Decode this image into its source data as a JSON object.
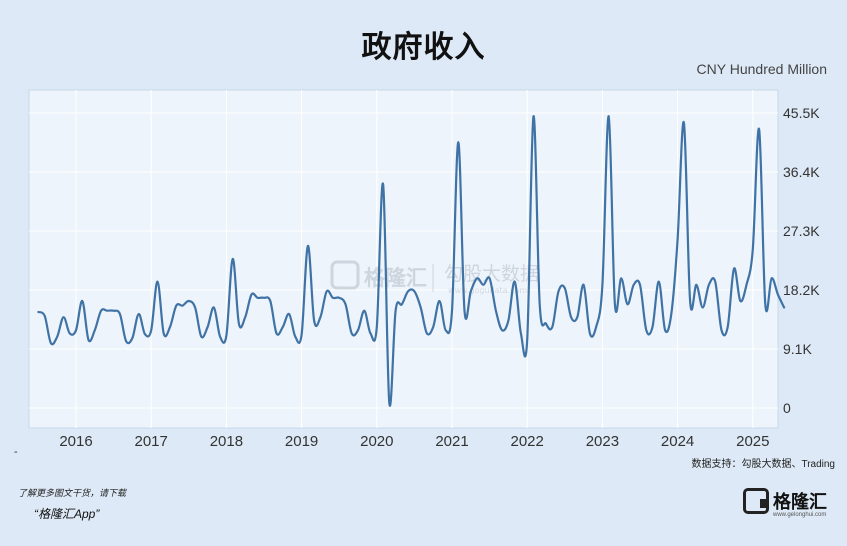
{
  "title": "政府收入",
  "unit": "CNY Hundred Million",
  "watermark": {
    "brand": "格隆汇",
    "database": "勾股大数据",
    "url": "www.gogudata.com"
  },
  "source": "数据支持：勾股大数据、Trading",
  "dash": "-",
  "footer": {
    "line1": "了解更多图文干货，请下载",
    "line2": "“格隆汇App”"
  },
  "brand": {
    "name": "格隆汇",
    "url": "www.gelonghui.com"
  },
  "colors": {
    "background": "#dde9f6",
    "plot_background": "#eef4fb",
    "line": "#3f73a5",
    "grid": "#ffffff"
  },
  "chart_data": {
    "type": "line",
    "title": "政府收入",
    "unit": "CNY Hundred Million",
    "grid": true,
    "y_axis_side": "right",
    "ylim": [
      0,
      48000
    ],
    "y_ticks": [
      0,
      9100,
      18200,
      27300,
      36400,
      45500
    ],
    "y_tick_labels": [
      "0",
      "9.1K",
      "18.2K",
      "27.3K",
      "36.4K",
      "45.5K"
    ],
    "x_tick_labels": [
      "2016",
      "2017",
      "2018",
      "2019",
      "2020",
      "2021",
      "2022",
      "2023",
      "2024",
      "2025"
    ],
    "x": [
      "2015-07",
      "2015-08",
      "2015-09",
      "2015-10",
      "2015-11",
      "2015-12",
      "2016-01",
      "2016-02",
      "2016-03",
      "2016-04",
      "2016-05",
      "2016-06",
      "2016-07",
      "2016-08",
      "2016-09",
      "2016-10",
      "2016-11",
      "2016-12",
      "2017-01",
      "2017-02",
      "2017-03",
      "2017-04",
      "2017-05",
      "2017-06",
      "2017-07",
      "2017-08",
      "2017-09",
      "2017-10",
      "2017-11",
      "2017-12",
      "2018-01",
      "2018-02",
      "2018-03",
      "2018-04",
      "2018-05",
      "2018-06",
      "2018-07",
      "2018-08",
      "2018-09",
      "2018-10",
      "2018-11",
      "2018-12",
      "2019-01",
      "2019-02",
      "2019-03",
      "2019-04",
      "2019-05",
      "2019-06",
      "2019-07",
      "2019-08",
      "2019-09",
      "2019-10",
      "2019-11",
      "2019-12",
      "2020-01",
      "2020-02",
      "2020-03",
      "2020-04",
      "2020-05",
      "2020-06",
      "2020-07",
      "2020-08",
      "2020-09",
      "2020-10",
      "2020-11",
      "2020-12",
      "2021-01",
      "2021-02",
      "2021-03",
      "2021-04",
      "2021-05",
      "2021-06",
      "2021-07",
      "2021-08",
      "2021-09",
      "2021-10",
      "2021-11",
      "2021-12",
      "2022-01",
      "2022-02",
      "2022-03",
      "2022-04",
      "2022-05",
      "2022-06",
      "2022-07",
      "2022-08",
      "2022-09",
      "2022-10",
      "2022-11",
      "2022-12",
      "2023-01",
      "2023-02",
      "2023-03",
      "2023-04",
      "2023-05",
      "2023-06",
      "2023-07",
      "2023-08",
      "2023-09",
      "2023-10",
      "2023-11",
      "2023-12",
      "2024-01",
      "2024-02",
      "2024-03",
      "2024-04",
      "2024-05",
      "2024-06",
      "2024-07",
      "2024-08",
      "2024-09",
      "2024-10",
      "2024-11",
      "2024-12",
      "2025-01",
      "2025-02",
      "2025-03",
      "2025-04",
      "2025-05",
      "2025-06"
    ],
    "series": [
      {
        "values": [
          14800,
          14200,
          10000,
          11000,
          14000,
          11500,
          12000,
          16500,
          10500,
          12000,
          15000,
          15000,
          15000,
          14500,
          10300,
          10800,
          14500,
          11400,
          12000,
          19500,
          11500,
          12500,
          15800,
          15800,
          16500,
          15500,
          11000,
          12500,
          15500,
          11000,
          11200,
          23000,
          13000,
          14000,
          17500,
          17000,
          17000,
          16500,
          11500,
          12500,
          14500,
          11000,
          11300,
          25000,
          13500,
          14000,
          18000,
          17000,
          17000,
          16000,
          11500,
          12000,
          15000,
          11500,
          12500,
          34500,
          800,
          15000,
          16000,
          18000,
          18000,
          15500,
          11500,
          12500,
          16500,
          12000,
          15000,
          41000,
          15000,
          18000,
          20000,
          19000,
          20000,
          15000,
          12000,
          13500,
          19500,
          11500,
          10500,
          45000,
          16000,
          13000,
          12500,
          18000,
          18500,
          14000,
          14000,
          19000,
          11500,
          12500,
          19000,
          45000,
          16000,
          20000,
          16000,
          19000,
          19000,
          12000,
          12500,
          19500,
          12000,
          14500,
          26000,
          44000,
          16500,
          19000,
          15500,
          19000,
          19500,
          12000,
          12500,
          21500,
          16500,
          19000,
          24500,
          43000,
          16000,
          20000,
          17500,
          15500
        ]
      }
    ]
  }
}
